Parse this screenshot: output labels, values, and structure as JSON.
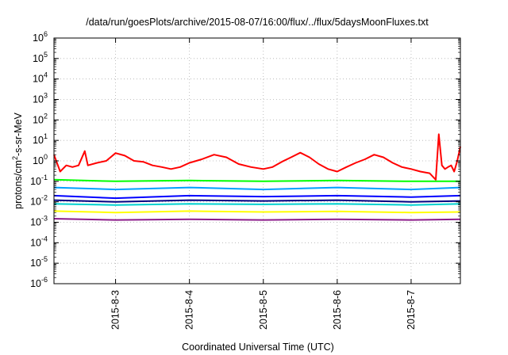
{
  "chart_data": {
    "type": "line",
    "title": "/data/run/goesPlots/archive/2015-08-07/16:00/flux/../flux/5daysMoonFluxes.txt",
    "xlabel": "Coordinated Universal Time (UTC)",
    "ylabel": "protons/cm2-s-sr-MeV",
    "yscale": "log",
    "ylim": [
      1e-06,
      1000000.0
    ],
    "xlim": [
      "2015-08-02T04:00",
      "2015-08-07T16:00"
    ],
    "grid": "dotted",
    "y_ticks": [
      {
        "value": 1e-06,
        "base": "10",
        "exp": "-6"
      },
      {
        "value": 1e-05,
        "base": "10",
        "exp": "-5"
      },
      {
        "value": 0.0001,
        "base": "10",
        "exp": "-4"
      },
      {
        "value": 0.001,
        "base": "10",
        "exp": "-3"
      },
      {
        "value": 0.01,
        "base": "10",
        "exp": "-2"
      },
      {
        "value": 0.1,
        "base": "10",
        "exp": "-1"
      },
      {
        "value": 1,
        "base": "10",
        "exp": "0"
      },
      {
        "value": 10,
        "base": "10",
        "exp": "1"
      },
      {
        "value": 100,
        "base": "10",
        "exp": "2"
      },
      {
        "value": 1000,
        "base": "10",
        "exp": "3"
      },
      {
        "value": 10000,
        "base": "10",
        "exp": "4"
      },
      {
        "value": 100000,
        "base": "10",
        "exp": "5"
      },
      {
        "value": 1000000,
        "base": "10",
        "exp": "6"
      }
    ],
    "x_ticks": [
      "2015-8-3",
      "2015-8-4",
      "2015-8-5",
      "2015-8-6",
      "2015-8-7"
    ],
    "series": [
      {
        "color": "#ff0000",
        "points": [
          [
            "2015-08-02T04:00",
            2.0
          ],
          [
            "2015-08-02T06:00",
            0.3
          ],
          [
            "2015-08-02T08:00",
            0.6
          ],
          [
            "2015-08-02T10:00",
            0.5
          ],
          [
            "2015-08-02T12:00",
            0.6
          ],
          [
            "2015-08-02T14:00",
            3.0
          ],
          [
            "2015-08-02T15:00",
            0.6
          ],
          [
            "2015-08-02T18:00",
            0.8
          ],
          [
            "2015-08-02T21:00",
            1.0
          ],
          [
            "2015-08-03T00:00",
            2.4
          ],
          [
            "2015-08-03T03:00",
            1.8
          ],
          [
            "2015-08-03T06:00",
            1.0
          ],
          [
            "2015-08-03T09:00",
            0.9
          ],
          [
            "2015-08-03T12:00",
            0.6
          ],
          [
            "2015-08-03T15:00",
            0.5
          ],
          [
            "2015-08-03T18:00",
            0.4
          ],
          [
            "2015-08-03T21:00",
            0.5
          ],
          [
            "2015-08-04T00:00",
            0.8
          ],
          [
            "2015-08-04T04:00",
            1.2
          ],
          [
            "2015-08-04T08:00",
            2.0
          ],
          [
            "2015-08-04T12:00",
            1.5
          ],
          [
            "2015-08-04T16:00",
            0.7
          ],
          [
            "2015-08-04T20:00",
            0.5
          ],
          [
            "2015-08-05T00:00",
            0.4
          ],
          [
            "2015-08-05T03:00",
            0.5
          ],
          [
            "2015-08-05T06:00",
            0.9
          ],
          [
            "2015-08-05T09:00",
            1.5
          ],
          [
            "2015-08-05T12:00",
            2.5
          ],
          [
            "2015-08-05T15:00",
            1.5
          ],
          [
            "2015-08-05T18:00",
            0.7
          ],
          [
            "2015-08-05T21:00",
            0.4
          ],
          [
            "2015-08-06T00:00",
            0.3
          ],
          [
            "2015-08-06T03:00",
            0.5
          ],
          [
            "2015-08-06T06:00",
            0.8
          ],
          [
            "2015-08-06T09:00",
            1.2
          ],
          [
            "2015-08-06T12:00",
            2.0
          ],
          [
            "2015-08-06T15:00",
            1.5
          ],
          [
            "2015-08-06T18:00",
            0.8
          ],
          [
            "2015-08-06T21:00",
            0.5
          ],
          [
            "2015-08-07T00:00",
            0.4
          ],
          [
            "2015-08-07T03:00",
            0.3
          ],
          [
            "2015-08-07T06:00",
            0.25
          ],
          [
            "2015-08-07T08:00",
            0.12
          ],
          [
            "2015-08-07T09:00",
            20.0
          ],
          [
            "2015-08-07T10:00",
            0.6
          ],
          [
            "2015-08-07T11:00",
            0.4
          ],
          [
            "2015-08-07T12:00",
            0.5
          ],
          [
            "2015-08-07T13:00",
            0.6
          ],
          [
            "2015-08-07T14:00",
            0.3
          ],
          [
            "2015-08-07T15:00",
            1.0
          ],
          [
            "2015-08-07T16:00",
            5.0
          ]
        ]
      },
      {
        "color": "#00ff00",
        "points": [
          [
            "2015-08-02T04:00",
            0.12
          ],
          [
            "2015-08-03T00:00",
            0.1
          ],
          [
            "2015-08-04T00:00",
            0.11
          ],
          [
            "2015-08-05T00:00",
            0.1
          ],
          [
            "2015-08-06T00:00",
            0.11
          ],
          [
            "2015-08-07T00:00",
            0.1
          ],
          [
            "2015-08-07T16:00",
            0.1
          ]
        ]
      },
      {
        "color": "#00a0ff",
        "points": [
          [
            "2015-08-02T04:00",
            0.05
          ],
          [
            "2015-08-03T00:00",
            0.04
          ],
          [
            "2015-08-04T00:00",
            0.05
          ],
          [
            "2015-08-05T00:00",
            0.04
          ],
          [
            "2015-08-06T00:00",
            0.05
          ],
          [
            "2015-08-07T00:00",
            0.04
          ],
          [
            "2015-08-07T16:00",
            0.05
          ]
        ]
      },
      {
        "color": "#0000ff",
        "points": [
          [
            "2015-08-02T04:00",
            0.02
          ],
          [
            "2015-08-03T00:00",
            0.015
          ],
          [
            "2015-08-04T00:00",
            0.02
          ],
          [
            "2015-08-05T00:00",
            0.018
          ],
          [
            "2015-08-06T00:00",
            0.02
          ],
          [
            "2015-08-07T00:00",
            0.017
          ],
          [
            "2015-08-07T16:00",
            0.02
          ]
        ]
      },
      {
        "color": "#000080",
        "points": [
          [
            "2015-08-02T04:00",
            0.012
          ],
          [
            "2015-08-03T00:00",
            0.01
          ],
          [
            "2015-08-04T00:00",
            0.012
          ],
          [
            "2015-08-05T00:00",
            0.011
          ],
          [
            "2015-08-06T00:00",
            0.012
          ],
          [
            "2015-08-07T00:00",
            0.01
          ],
          [
            "2015-08-07T16:00",
            0.011
          ]
        ]
      },
      {
        "color": "#00d0d0",
        "points": [
          [
            "2015-08-02T04:00",
            0.008
          ],
          [
            "2015-08-03T00:00",
            0.007
          ],
          [
            "2015-08-04T00:00",
            0.008
          ],
          [
            "2015-08-05T00:00",
            0.0075
          ],
          [
            "2015-08-06T00:00",
            0.008
          ],
          [
            "2015-08-07T00:00",
            0.007
          ],
          [
            "2015-08-07T16:00",
            0.008
          ]
        ]
      },
      {
        "color": "#ffff00",
        "points": [
          [
            "2015-08-02T04:00",
            0.0035
          ],
          [
            "2015-08-03T00:00",
            0.003
          ],
          [
            "2015-08-04T00:00",
            0.0035
          ],
          [
            "2015-08-05T00:00",
            0.0032
          ],
          [
            "2015-08-06T00:00",
            0.0034
          ],
          [
            "2015-08-07T00:00",
            0.003
          ],
          [
            "2015-08-07T16:00",
            0.0032
          ]
        ]
      },
      {
        "color": "#8b1a89",
        "points": [
          [
            "2015-08-02T04:00",
            0.0015
          ],
          [
            "2015-08-03T00:00",
            0.0013
          ],
          [
            "2015-08-04T00:00",
            0.0014
          ],
          [
            "2015-08-05T00:00",
            0.0013
          ],
          [
            "2015-08-06T00:00",
            0.0014
          ],
          [
            "2015-08-07T00:00",
            0.0013
          ],
          [
            "2015-08-07T16:00",
            0.0014
          ]
        ]
      }
    ]
  }
}
